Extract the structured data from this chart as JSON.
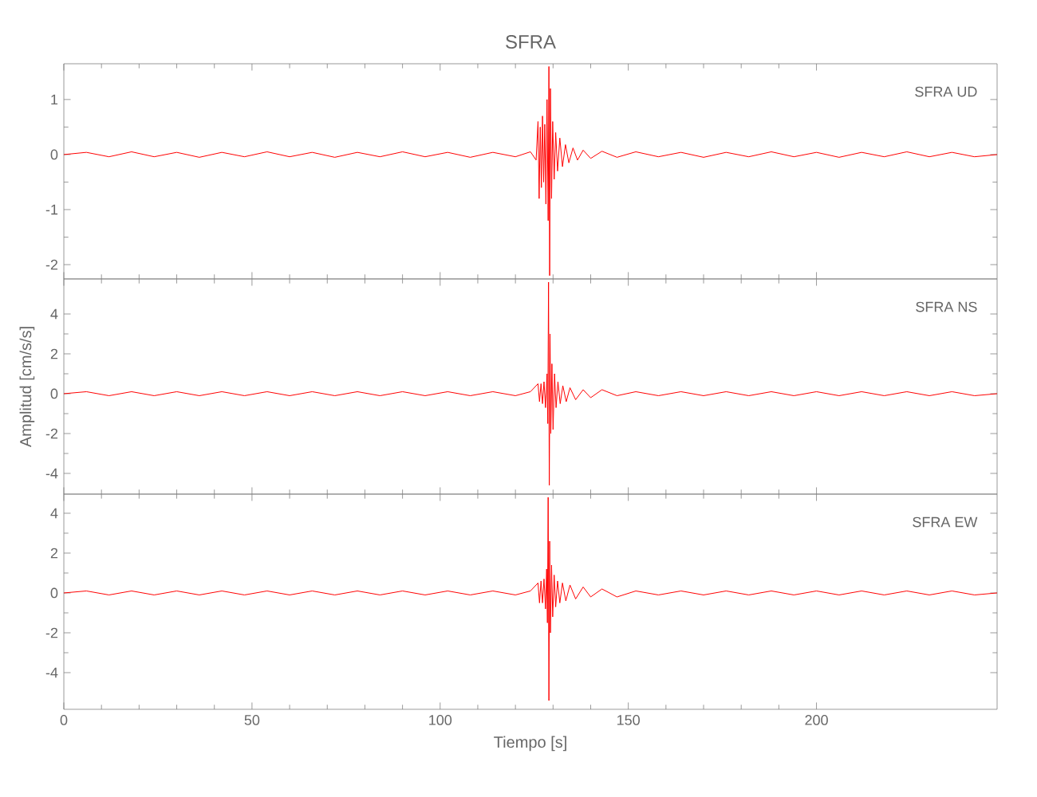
{
  "chart_data": [
    {
      "type": "line",
      "title": "SFRA",
      "annotations": [
        "SFRA UD"
      ],
      "xlim": [
        0,
        248
      ],
      "xticks": [
        0,
        50,
        100,
        150,
        200
      ],
      "ylim": [
        -2.26,
        1.65
      ],
      "yticks": [
        -2,
        -1,
        0,
        1
      ],
      "tick_labels": "y",
      "series": [
        {
          "color": "#ff0000",
          "x": [
            0,
            6,
            12,
            18,
            24,
            30,
            36,
            42,
            48,
            54,
            60,
            66,
            72,
            78,
            84,
            90,
            96,
            102,
            108,
            114,
            120,
            124,
            125.5,
            126,
            126.3,
            126.6,
            126.9,
            127.2,
            127.5,
            127.8,
            128.1,
            128.4,
            128.7,
            128.9,
            129.1,
            129.3,
            129.6,
            129.9,
            130.3,
            130.7,
            131.2,
            131.8,
            132.5,
            133.3,
            134.2,
            135.3,
            136.5,
            138,
            140,
            143,
            147,
            152,
            158,
            164,
            170,
            176,
            182,
            188,
            194,
            200,
            206,
            212,
            218,
            224,
            230,
            236,
            242,
            248
          ],
          "values": [
            0,
            0.04,
            -0.04,
            0.05,
            -0.04,
            0.04,
            -0.05,
            0.04,
            -0.04,
            0.05,
            -0.04,
            0.04,
            -0.05,
            0.04,
            -0.04,
            0.05,
            -0.04,
            0.04,
            -0.05,
            0.04,
            -0.04,
            0.05,
            -0.1,
            0.6,
            -0.8,
            0.5,
            -0.6,
            0.7,
            -0.5,
            0.55,
            -0.9,
            1.0,
            -1.2,
            1.6,
            -2.2,
            1.2,
            -0.8,
            0.6,
            -0.45,
            0.4,
            -0.3,
            0.3,
            -0.22,
            0.18,
            -0.15,
            0.12,
            -0.1,
            0.08,
            -0.07,
            0.06,
            -0.05,
            0.05,
            -0.04,
            0.04,
            -0.05,
            0.04,
            -0.04,
            0.05,
            -0.04,
            0.04,
            -0.05,
            0.04,
            -0.04,
            0.05,
            -0.04,
            0.04,
            -0.04,
            0
          ]
        }
      ]
    },
    {
      "type": "line",
      "ylabel": "Amplitud [cm/s/s]",
      "annotations": [
        "SFRA NS"
      ],
      "xlim": [
        0,
        248
      ],
      "xticks": [
        0,
        50,
        100,
        150,
        200
      ],
      "ylim": [
        -5.04,
        5.76
      ],
      "yticks": [
        -4,
        -2,
        0,
        2,
        4
      ],
      "tick_labels": "y",
      "series": [
        {
          "color": "#ff0000",
          "x": [
            0,
            6,
            12,
            18,
            24,
            30,
            36,
            42,
            48,
            54,
            60,
            66,
            72,
            78,
            84,
            90,
            96,
            102,
            108,
            114,
            120,
            124,
            126,
            126.4,
            126.8,
            127.2,
            127.6,
            128,
            128.4,
            128.6,
            128.8,
            129,
            129.2,
            129.4,
            129.7,
            130,
            130.4,
            130.8,
            131.3,
            131.9,
            132.6,
            133.5,
            134.5,
            136,
            138,
            140,
            143,
            147,
            152,
            158,
            164,
            170,
            176,
            182,
            188,
            194,
            200,
            206,
            212,
            218,
            224,
            230,
            236,
            242,
            248
          ],
          "values": [
            0,
            0.1,
            -0.1,
            0.1,
            -0.1,
            0.1,
            -0.1,
            0.1,
            -0.1,
            0.1,
            -0.1,
            0.1,
            -0.1,
            0.1,
            -0.1,
            0.1,
            -0.1,
            0.1,
            -0.1,
            0.1,
            -0.1,
            0.1,
            0.5,
            -0.4,
            0.5,
            -0.5,
            0.6,
            -0.7,
            1.0,
            -1.5,
            5.6,
            -4.6,
            3.0,
            -2.0,
            1.5,
            -1.8,
            1.0,
            -0.7,
            0.6,
            -0.5,
            0.4,
            -0.4,
            0.3,
            -0.3,
            0.2,
            -0.2,
            0.2,
            -0.1,
            0.1,
            -0.1,
            0.1,
            -0.1,
            0.1,
            -0.1,
            0.1,
            -0.1,
            0.1,
            -0.1,
            0.1,
            -0.1,
            0.1,
            -0.1,
            0.1,
            -0.1,
            0
          ]
        }
      ]
    },
    {
      "type": "line",
      "xlabel": "Tiempo [s]",
      "annotations": [
        "SFRA EW"
      ],
      "xlim": [
        0,
        248
      ],
      "xticks": [
        0,
        50,
        100,
        150,
        200
      ],
      "ylim": [
        -5.84,
        4.96
      ],
      "yticks": [
        -4,
        -2,
        0,
        2,
        4
      ],
      "series": [
        {
          "color": "#ff0000",
          "x": [
            0,
            6,
            12,
            18,
            24,
            30,
            36,
            42,
            48,
            54,
            60,
            66,
            72,
            78,
            84,
            90,
            96,
            102,
            108,
            114,
            120,
            124,
            126,
            126.4,
            126.8,
            127.2,
            127.6,
            128,
            128.3,
            128.5,
            128.7,
            128.9,
            129.1,
            129.3,
            129.6,
            129.9,
            130.3,
            130.7,
            131.2,
            131.8,
            132.5,
            133.4,
            134.5,
            136,
            138,
            140,
            143,
            147,
            152,
            158,
            164,
            170,
            176,
            182,
            188,
            194,
            200,
            206,
            212,
            218,
            224,
            230,
            236,
            242,
            248
          ],
          "values": [
            0,
            0.1,
            -0.1,
            0.1,
            -0.1,
            0.1,
            -0.1,
            0.1,
            -0.1,
            0.1,
            -0.1,
            0.1,
            -0.1,
            0.1,
            -0.1,
            0.1,
            -0.1,
            0.1,
            -0.1,
            0.1,
            -0.1,
            0.1,
            0.5,
            -0.5,
            0.6,
            -0.5,
            0.7,
            -0.8,
            1.2,
            -1.5,
            4.8,
            -5.4,
            2.6,
            -2.0,
            1.4,
            -1.2,
            0.9,
            -0.7,
            0.6,
            -0.5,
            0.5,
            -0.4,
            0.4,
            -0.3,
            0.3,
            -0.2,
            0.2,
            -0.2,
            0.1,
            -0.1,
            0.1,
            -0.1,
            0.1,
            -0.1,
            0.1,
            -0.1,
            0.1,
            -0.1,
            0.1,
            -0.1,
            0.1,
            -0.1,
            0.1,
            -0.1,
            0
          ]
        }
      ]
    }
  ]
}
